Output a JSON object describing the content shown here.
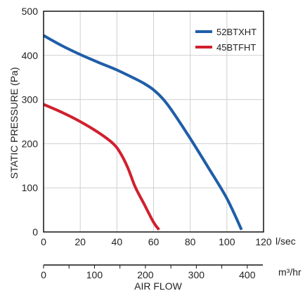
{
  "chart_data": {
    "type": "line",
    "ylabel": "STATIC PRESSURE (Pa)",
    "xlabel": "AIR FLOW",
    "x_unit": "l/sec",
    "x2_unit": "m³/hr",
    "xlim": [
      0,
      120
    ],
    "ylim": [
      0,
      500
    ],
    "x_ticks": [
      0,
      20,
      40,
      60,
      80,
      100,
      120
    ],
    "y_ticks": [
      0,
      100,
      200,
      300,
      400,
      500
    ],
    "x2_ticks": [
      0,
      100,
      200,
      300,
      400
    ],
    "x2_lim": [
      0,
      432
    ],
    "grid": true,
    "legend_position": "top-right",
    "series": [
      {
        "name": "52BTXHT",
        "color": "#1f5ea8",
        "x": [
          0,
          10,
          20,
          30,
          40,
          50,
          55,
          60,
          65,
          70,
          80,
          90,
          100,
          108
        ],
        "y": [
          445,
          422,
          402,
          384,
          367,
          347,
          336,
          322,
          302,
          275,
          212,
          145,
          76,
          5
        ]
      },
      {
        "name": "45BTFHT",
        "color": "#d0202e",
        "x": [
          0,
          10,
          20,
          30,
          38,
          42,
          46,
          50,
          55,
          60,
          63
        ],
        "y": [
          289,
          271,
          250,
          225,
          200,
          178,
          145,
          102,
          62,
          22,
          5
        ]
      }
    ]
  }
}
